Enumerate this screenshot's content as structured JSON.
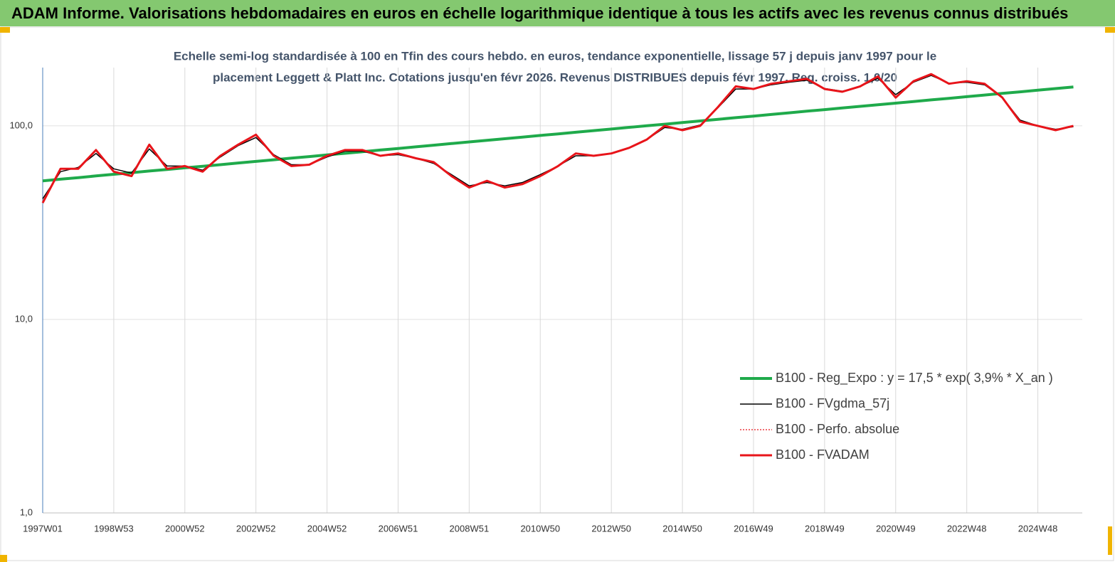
{
  "page_title": "ADAM Informe. Valorisations hebdomadaires en euros en échelle logarithmique identique à tous les actifs avec les revenus connus distribués",
  "chart_data": {
    "type": "line",
    "title": [
      "Echelle semi-log standardisée à 100 en Tfin des cours hebdo. en euros, tendance exponentielle, lissage 57 j depuis janv 1997 pour le",
      "placement Leggett & Platt Inc. Cotations jusqu'en févr 2026. Revenus DISTRIBUES depuis févr 1997. Reg. croiss. 1,0/20"
    ],
    "categories": [
      "1997W01",
      null,
      null,
      null,
      "1998W53",
      null,
      null,
      null,
      "2000W52",
      null,
      null,
      null,
      "2002W52",
      null,
      null,
      null,
      "2004W52",
      null,
      null,
      null,
      "2006W51",
      null,
      null,
      null,
      "2008W51",
      null,
      null,
      null,
      "2010W50",
      null,
      null,
      null,
      "2012W50",
      null,
      null,
      null,
      "2014W50",
      null,
      null,
      null,
      "2016W49",
      null,
      null,
      null,
      "2018W49",
      null,
      null,
      null,
      "2020W49",
      null,
      null,
      null,
      "2022W48",
      null,
      null,
      null,
      "2024W48",
      null,
      null
    ],
    "log_scale": true,
    "ylim": [
      1,
      200
    ],
    "yticks": [
      {
        "value": 1,
        "label": "1,0"
      },
      {
        "value": 10,
        "label": "10,0"
      },
      {
        "value": 100,
        "label": "100,0"
      }
    ],
    "grid": true,
    "legend": "lower right",
    "series": [
      {
        "name": "B100 - Reg_Expo : y = 17,5 * exp( 3,9% *  X_an )",
        "color": "#1faa4b",
        "width": 4,
        "dash": false,
        "values": [
          52.0,
          53.0,
          54.0,
          55.1,
          56.2,
          57.3,
          58.4,
          59.5,
          60.7,
          61.8,
          63.0,
          64.3,
          65.5,
          66.8,
          68.1,
          69.4,
          70.8,
          72.1,
          73.5,
          75.0,
          76.4,
          77.9,
          79.4,
          81.0,
          82.6,
          84.2,
          85.8,
          87.5,
          89.2,
          90.9,
          92.7,
          94.5,
          96.3,
          98.2,
          100.1,
          102.0,
          104.0,
          106.0,
          108.1,
          110.2,
          112.3,
          114.5,
          116.7,
          119.0,
          121.3,
          123.7,
          126.1,
          128.5,
          131.0,
          133.6,
          136.2,
          138.8,
          141.5,
          144.3,
          147.1,
          149.9,
          152.8,
          155.8,
          158.8
        ]
      },
      {
        "name": "B100 - FVgdma_57j",
        "color": "#000000",
        "width": 1.5,
        "dash": false,
        "values": [
          42,
          58,
          61,
          72,
          60,
          57,
          76,
          62,
          62,
          59,
          69,
          79,
          87,
          71,
          63,
          63,
          69,
          74,
          74,
          70,
          71,
          68,
          64,
          56,
          49,
          51,
          49,
          51,
          56,
          62,
          70,
          70,
          72,
          77,
          85,
          98,
          96,
          101,
          124,
          155,
          155,
          163,
          168,
          172,
          156,
          151,
          160,
          176,
          145,
          168,
          182,
          166,
          168,
          163,
          140,
          107,
          100,
          96,
          99
        ]
      },
      {
        "name": "B100 - Perfo. absolue",
        "color": "#e8141a",
        "width": 1.2,
        "dash": true,
        "values": [
          40,
          60,
          60,
          75,
          58,
          55,
          80,
          60,
          62,
          58,
          70,
          80,
          90,
          70,
          62,
          63,
          70,
          75,
          75,
          70,
          72,
          68,
          65,
          55,
          48,
          52,
          48,
          50,
          55,
          62,
          72,
          70,
          72,
          77,
          85,
          100,
          95,
          100,
          125,
          160,
          155,
          165,
          170,
          175,
          155,
          150,
          160,
          180,
          140,
          170,
          185,
          165,
          170,
          165,
          140,
          105,
          100,
          95,
          100
        ]
      },
      {
        "name": "B100 - FVADAM",
        "color": "#e8141a",
        "width": 3,
        "dash": false,
        "values": [
          40,
          60,
          60,
          75,
          58,
          55,
          80,
          60,
          62,
          58,
          70,
          80,
          90,
          70,
          62,
          63,
          70,
          75,
          75,
          70,
          72,
          68,
          65,
          55,
          48,
          52,
          48,
          50,
          55,
          62,
          72,
          70,
          72,
          77,
          85,
          100,
          95,
          100,
          125,
          160,
          155,
          165,
          170,
          175,
          155,
          150,
          160,
          180,
          140,
          170,
          185,
          165,
          170,
          165,
          140,
          105,
          100,
          95,
          100
        ]
      }
    ]
  }
}
